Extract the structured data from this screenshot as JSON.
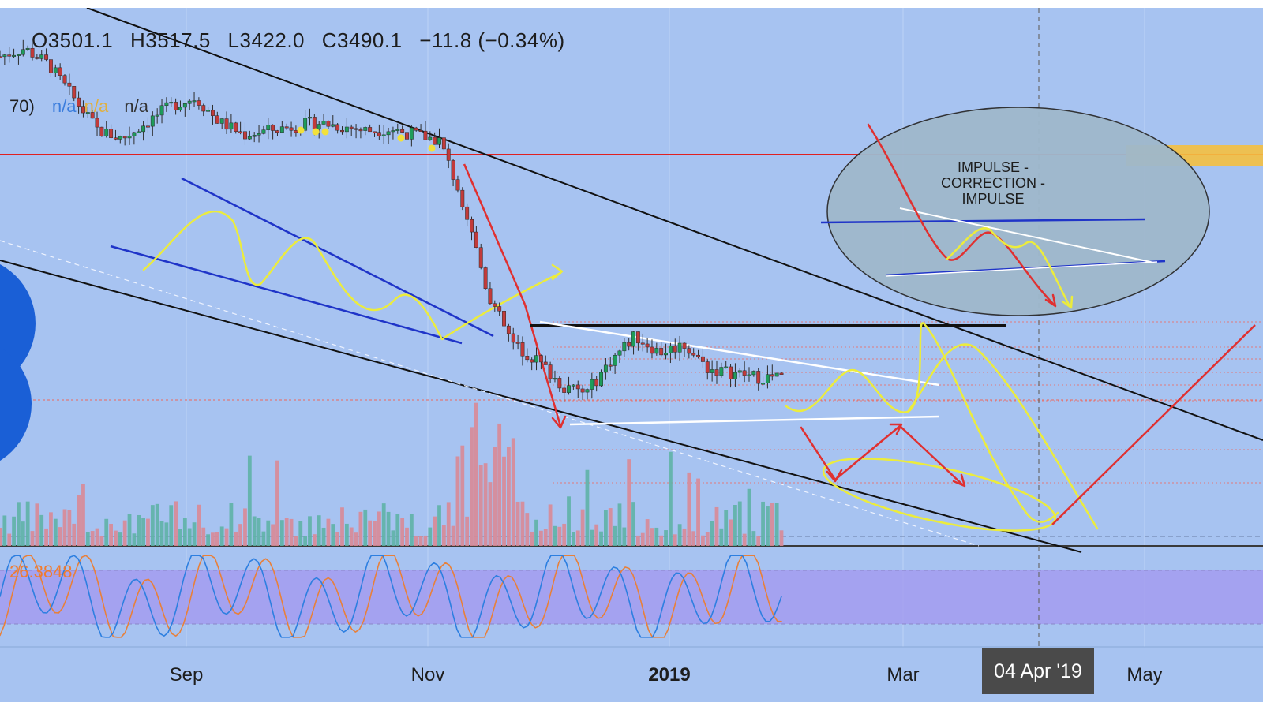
{
  "ohlc": {
    "open": "O3501.1",
    "high": "H3517.5",
    "low": "L3422.0",
    "close": "C3490.1",
    "change": "−11.8 (−0.34%)"
  },
  "indicator_legend": {
    "label": "70)",
    "v1": "n/a",
    "v2": "n/a",
    "v3": "n/a"
  },
  "stoch_value": "26.3848",
  "annotation": {
    "line1": "IMPULSE -",
    "line2": "CORRECTION -",
    "line3": "IMPULSE"
  },
  "date_badge": "04 Apr '19",
  "chart_data": {
    "type": "candlestick",
    "x_tick_labels": [
      {
        "label": "Sep",
        "bold": false
      },
      {
        "label": "Nov",
        "bold": false
      },
      {
        "label": "2019",
        "bold": true
      },
      {
        "label": "Mar",
        "bold": false
      },
      {
        "label": "May",
        "bold": false
      }
    ],
    "ohlc_last": {
      "open": 3501.1,
      "high": 3517.5,
      "low": 3422.0,
      "close": 3490.1,
      "change": -11.8,
      "change_pct": -0.34
    },
    "price_series_approx": [
      7400,
      7500,
      7300,
      6900,
      6500,
      6400,
      6600,
      6800,
      6900,
      6600,
      6450,
      6500,
      6550,
      6600,
      6550,
      6500,
      6520,
      6450,
      6380,
      5600,
      4500,
      3900,
      3700,
      3400,
      3300,
      3700,
      4000,
      3800,
      3900,
      3600,
      3550,
      3500,
      3490
    ],
    "stochastic": {
      "upper_band": 80,
      "lower_band": 20,
      "last_value": 26.3848
    },
    "colors": {
      "background": "#a7c3f1",
      "up": "#1e9c5a",
      "down": "#c23a3a",
      "horizontal_resistance": "#e02020",
      "highlight_zone": "#f5c040"
    }
  }
}
